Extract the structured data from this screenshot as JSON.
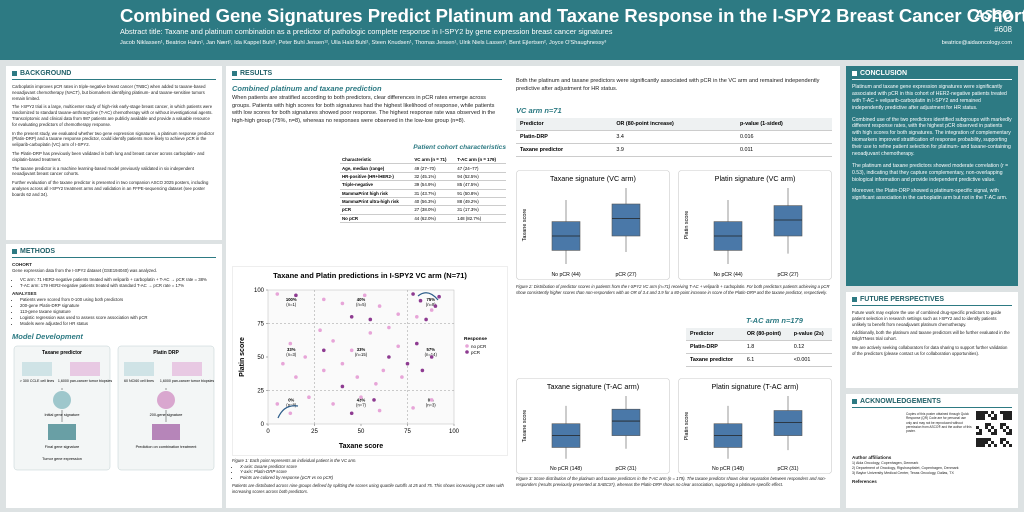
{
  "header": {
    "title": "Combined Gene Signatures Predict Platinum and Taxane Response in the I-SPY2 Breast Cancer Cohort",
    "subtitle": "Abstract title: Taxane and platinum combination as a predictor of pathologic complete response in I-SPY2 by gene expression breast cancer signatures",
    "authors": "Jacob Niklassen¹, Beatrice Hahn¹, Jan Nært¹, Ida Kappel Buhl¹, Peter Buhl Jensen¹², Ulla Hald Buhl¹, Steen Knudsen¹, Thomas Jensen¹, Ulrik Niels Lassen², Bent Ejlertsen², Joyce O'Shaughnessy³",
    "logo": "ASCO",
    "poster_id": "#608",
    "email": "beatrice@aidaoncology.com"
  },
  "background": {
    "heading": "BACKGROUND",
    "paragraphs": [
      "Carboplatin improves pCR rates in triple-negative breast cancer (TNBC) when added to taxane-based neoadjuvant chemotherapy (NACT), but biomarkers identifying platinum- and taxane-sensitive tumors remain limited.",
      "The I-SPY2 trial is a large, multicenter study of high-risk early-stage breast cancer, in which patients were randomized to standard taxane-anthracycline (T-AC) chemotherapy with or without investigational agents. Transcriptomic and clinical data from 987 patients are publicly available and provide a valuable resource for evaluating predictors of chemotherapy response.",
      "In the present study, we evaluated whether two gene expression signatures, a platinum response predictor (Platin-DRP) and a taxane response predictor, could identify patients more likely to achieve pCR in the veliparib-carboplatin (VC) arm of I-SPY2.",
      "The Platin-DRP has previously been validated in both lung and breast cancer across carboplatin- and cisplatin-based treatment.",
      "The taxane predictor is a machine learning-based model previously validated in six independent neoadjuvant breast cancer cohorts.",
      "Further evaluation of the taxane predictor is presented in two companion ASCO 2025 posters, including analyses across all I-SPY2 treatment arms and validation in an FFPE-sequencing dataset (see poster boards 62 and 34)."
    ]
  },
  "methods": {
    "heading": "METHODS",
    "cohort_label": "COHORT",
    "cohort_text": "Gene expression data from the I-SPY2 dataset (GSE194040) was analyzed.",
    "cohort_items": [
      "VC arm: 71 HER2-negative patients treated with veliparib + carboplatin + T-AC → pCR rate = 38%",
      "T-AC arm: 179 HER2-negative patients treated with standard T-AC → pCR rate = 17%"
    ],
    "analyses_label": "ANALYSES",
    "analyses_items": [
      "Patients were scored from 0-100 using both predictors",
      "200-gene Platin-DRP signature",
      "113-gene taxane signature",
      "Logistic regression was used to assess score association with pCR",
      "Models were adjusted for HR status"
    ],
    "model_heading": "Model Development",
    "diagram": {
      "taxane": "Taxane predictor",
      "platin": "Platin DRP",
      "cell_lines": "> 300 CCLE cell lines",
      "biopsies": "1,6000 pan-cancer tumor biopsies",
      "nci60": "60 NCI60 cell lines",
      "initial": "Initial gene signature",
      "final": "Final gene signature",
      "signature200": "200-gene signature",
      "prediction": "Prediction on combination treatment",
      "expression": "Tumor gene expression"
    }
  },
  "results": {
    "heading": "RESULTS",
    "subheading": "Combined platinum and taxane prediction",
    "paragraph": "When patients are stratified according to both predictors, clear differences in pCR rates emerge across groups. Patients with high scores for both signatures had the highest likelihood of response, while patients with low scores for both signatures showed poor response. The highest response rate was observed in the high-high group (75%, n=8), whereas no responses were observed in the low-low group (n=8).",
    "cohort_table": {
      "title": "Patient cohort characteristics",
      "header": [
        "Characteristic",
        "VC arm (n = 71)",
        "T-AC arm (n = 179)"
      ],
      "rows": [
        [
          "Age, median (range)",
          "49 (27–70)",
          "47 (24–77)"
        ],
        [
          "HR-positive (HR+/HER2-)",
          "32 (45.1%)",
          "94 (52.5%)"
        ],
        [
          "Triple-negative",
          "39 (54.9%)",
          "85 (47.5%)"
        ],
        [
          "MammaPrint high risk",
          "31 (43.7%)",
          "91 (50.8%)"
        ],
        [
          "MammaPrint ultra-high risk",
          "40 (56.3%)",
          "88 (49.2%)"
        ],
        [
          "pCR",
          "27 (38.0%)",
          "31 (17.3%)"
        ],
        [
          "No pCR",
          "44 (62.0%)",
          "148 (82.7%)"
        ]
      ]
    },
    "figure1": {
      "title": "Taxane and Platin predictions in I-SPY2 VC arm (N=71)",
      "xlabel": "Taxane score",
      "ylabel": "Platin score",
      "xlim": [
        0,
        100
      ],
      "ylim": [
        0,
        100
      ],
      "xticks": [
        0,
        25,
        50,
        75,
        100
      ],
      "yticks": [
        0,
        25,
        50,
        75,
        100
      ],
      "cutoffs": [
        25,
        75
      ],
      "legend_title": "Response",
      "series": [
        {
          "name": "no pCR",
          "color": "#e7a5d8",
          "points": [
            [
              5,
              97
            ],
            [
              30,
              93
            ],
            [
              40,
              90
            ],
            [
              52,
              96
            ],
            [
              60,
              88
            ],
            [
              70,
              82
            ],
            [
              80,
              80
            ],
            [
              88,
              85
            ],
            [
              12,
              60
            ],
            [
              20,
              50
            ],
            [
              35,
              62
            ],
            [
              40,
              45
            ],
            [
              45,
              55
            ],
            [
              55,
              68
            ],
            [
              62,
              40
            ],
            [
              70,
              58
            ],
            [
              30,
              40
            ],
            [
              48,
              35
            ],
            [
              58,
              30
            ],
            [
              15,
              35
            ],
            [
              5,
              15
            ],
            [
              12,
              8
            ],
            [
              22,
              20
            ],
            [
              35,
              15
            ],
            [
              50,
              20
            ],
            [
              60,
              10
            ],
            [
              78,
              12
            ],
            [
              88,
              18
            ],
            [
              72,
              35
            ],
            [
              8,
              45
            ],
            [
              65,
              72
            ],
            [
              28,
              70
            ]
          ]
        },
        {
          "name": "pCR",
          "color": "#8e3b91",
          "points": [
            [
              78,
              97
            ],
            [
              82,
              92
            ],
            [
              90,
              88
            ],
            [
              85,
              78
            ],
            [
              92,
              95
            ],
            [
              15,
              96
            ],
            [
              45,
              80
            ],
            [
              55,
              78
            ],
            [
              80,
              60
            ],
            [
              88,
              50
            ],
            [
              83,
              40
            ],
            [
              65,
              50
            ],
            [
              40,
              28
            ],
            [
              57,
              18
            ],
            [
              45,
              8
            ],
            [
              30,
              55
            ],
            [
              75,
              45
            ]
          ]
        }
      ],
      "groups": [
        [
          [
            "100%",
            "(n=1)"
          ],
          [
            "40%",
            "(n=5)"
          ],
          [
            "75%",
            "(n=8)"
          ]
        ],
        [
          [
            "33%",
            "(n=3)"
          ],
          [
            "33%",
            "(n=15)"
          ],
          [
            "57%",
            "(n=14)"
          ]
        ],
        [
          [
            "0%",
            "(n=8)"
          ],
          [
            "43%",
            "(n=7)"
          ],
          [
            "0%",
            "(n=3)"
          ]
        ]
      ],
      "caption": "Figure 1: Each point represents an individual patient in the VC arm.",
      "caption_items": [
        "X-axis: taxane predictor score",
        "Y-axis: Platin-DRP score",
        "Points are colored by response (pCR vs no pCR)"
      ],
      "caption_end": "Patients are distributed across nine groups defined by splitting the scores using quartile cutoffs at 25 and 75. This shows increasing pCR rates with increasing scores across both predictors."
    },
    "intro": "Both the platinum and taxane predictors were significantly associated with pCR in the VC arm and remained independently predictive after adjustment for HR status.",
    "vc": {
      "title": "VC arm n=71",
      "table": {
        "header": [
          "Predictor",
          "OR (80-point increase)",
          "p-value (1-sided)"
        ],
        "rows": [
          [
            "Platin-DRP",
            "3.4",
            "0.016"
          ],
          [
            "Taxane predictor",
            "3.9",
            "0.011"
          ]
        ]
      },
      "plots": [
        {
          "title": "Taxane signature (VC arm)",
          "ylabel": "Taxane score",
          "groups": [
            "No pCR (44)",
            "pCR (27)"
          ]
        },
        {
          "title": "Platin signature (VC arm)",
          "ylabel": "Platin score",
          "groups": [
            "No pCR (44)",
            "pCR (27)"
          ]
        }
      ],
      "caption": "Figure 2: Distribution of predictor scores in patients from the I-SPY2 VC arm (n=71) receiving T-AC + veliparib + carboplatin. For both predictors patients achieving a pCR show consistently higher scores than non-responders with an OR of 3.4 and 3.9 for a 80-point increase in score of the Platin-DRP and the taxane predictor, respectively."
    },
    "tac": {
      "title": "T-AC arm n=179",
      "table": {
        "header": [
          "Predictor",
          "OR (80-point)",
          "p-value (2s)"
        ],
        "rows": [
          [
            "Platin-DRP",
            "1.8",
            "0.12"
          ],
          [
            "Taxane predictor",
            "6.1",
            "<0.001"
          ]
        ]
      },
      "plots": [
        {
          "title": "Taxane signature (T-AC arm)",
          "ylabel": "Taxane score",
          "groups": [
            "No pCR (148)",
            "pCR (31)"
          ]
        },
        {
          "title": "Platin signature (T-AC arm)",
          "ylabel": "Platin score",
          "groups": [
            "No pCR (148)",
            "pCR (31)"
          ]
        }
      ],
      "caption": "Figure 3: Score distribution of the platinum and taxane predictors in the T-AC arm (n = 179). The taxane predictor shows clear separation between responders and non-responders (results previously presented at SABCS*), whereas the Platin-DRP shows no clear association, supporting a platinum-specific effect."
    }
  },
  "conclusion": {
    "heading": "CONCLUSION",
    "paragraphs": [
      "Platinum and taxane gene expression signatures were significantly associated with pCR in this cohort of HER2-negative patients treated with T-AC + veliparib-carboplatin in I-SPY2 and remained independently predictive after adjustment for HR status.",
      "Combined use of the two predictors identified subgroups with markedly different response rates, with the highest pCR observed in patients with high scores for both signatures. The integration of complementary biomarkers improved stratification of response probability, supporting their use to refine patient selection for platinum- and taxane-containing neoadjuvant chemotherapy.",
      "The platinum and taxane predictors showed moderate correlation (r = 0.53), indicating that they capture complementary, non-overlapping biological information and provide independent predictive value.",
      "Moreover, the Platin-DRP showed a platinum-specific signal, with significant association in the carboplatin arm but not in the T-AC arm."
    ]
  },
  "future": {
    "heading": "FUTURE PERSPECTIVES",
    "paragraphs": [
      "Future work may explore the use of combined drug-specific predictors to guide patient selection in research settings such as I-SPY2 and to identify patients unlikely to benefit from neoadjuvant platinum chemotherapy.",
      "Additionally, both the platinum and taxane predictors will be further evaluated in the BrighTNess trial cohort.",
      "We are actively seeking collaborators for data sharing to support further validation of the predictors (please contact us for collaboration opportunities)."
    ]
  },
  "acknowledgements": {
    "heading": "ACKNOWLEDGEMENTS",
    "qr_note": "Copies of this poster obtained through Quick Response (QR) Code are for personal use only and may not be reproduced without permission from ASCO® and the author of this poster.",
    "affiliations_label": "Author affiliations",
    "affiliations": [
      "1) Aida Oncology, Copenhagen, Denmark",
      "2) Department of Oncology, Rigshospitalet, Copenhagen, Denmark",
      "3) Baylor University Medical Center, Texas Oncology, Dallas, TX"
    ],
    "references_label": "References"
  }
}
